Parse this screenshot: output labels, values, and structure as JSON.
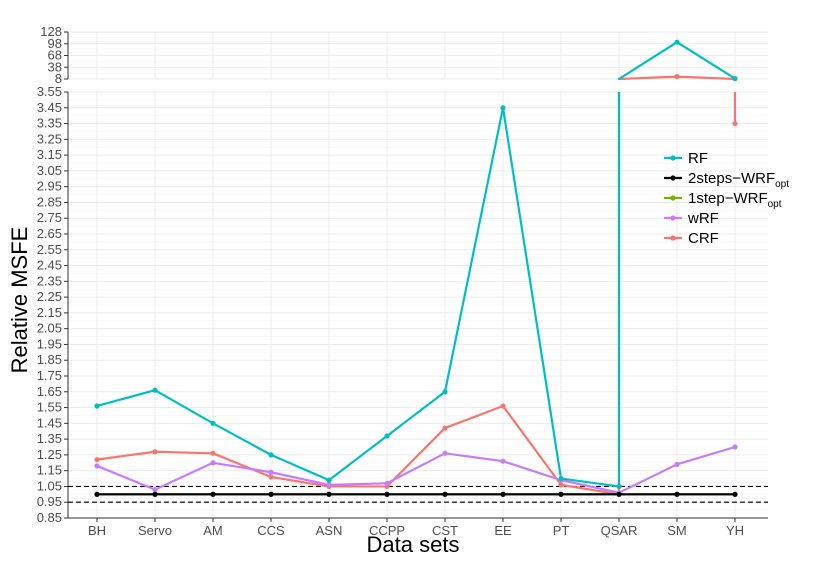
{
  "chart_data": {
    "type": "line",
    "xlabel": "Data sets",
    "ylabel": "Relative MSFE",
    "categories": [
      "BH",
      "Servo",
      "AM",
      "CCS",
      "ASN",
      "CCPP",
      "CST",
      "EE",
      "PT",
      "QSAR",
      "SM",
      "YH"
    ],
    "upper_panel": {
      "ylim": [
        8,
        128
      ],
      "ticks": [
        "128",
        "98",
        "68",
        "38",
        "8"
      ],
      "tick_values": [
        128,
        98,
        68,
        38,
        8
      ]
    },
    "lower_panel": {
      "ylim": [
        0.85,
        3.55
      ],
      "ticks": [
        "0.85",
        "0.95",
        "1.05",
        "1.15",
        "1.25",
        "1.35",
        "1.45",
        "1.55",
        "1.65",
        "1.75",
        "1.85",
        "1.95",
        "2.05",
        "2.15",
        "2.25",
        "2.35",
        "2.45",
        "2.55",
        "2.65",
        "2.75",
        "2.85",
        "2.95",
        "3.05",
        "3.15",
        "3.25",
        "3.35",
        "3.45",
        "3.55"
      ]
    },
    "reference_lines": [
      0.95,
      1.05
    ],
    "grid": true,
    "legend_position": "right",
    "series": [
      {
        "name": "RF",
        "color": "#00BFC4",
        "values": [
          1.56,
          1.66,
          1.45,
          1.25,
          1.09,
          1.37,
          1.65,
          3.45,
          1.1,
          1.05,
          102,
          9
        ]
      },
      {
        "name": "2steps−WRF",
        "sub": "opt",
        "color": "#000000",
        "values": [
          1.0,
          1.0,
          1.0,
          1.0,
          1.0,
          1.0,
          1.0,
          1.0,
          1.0,
          1.0,
          1.0,
          1.0
        ]
      },
      {
        "name": "1step−WRF",
        "sub": "opt",
        "color": "#7CAE00",
        "values": [
          1.0,
          1.0,
          1.0,
          1.0,
          1.0,
          1.0,
          1.0,
          1.0,
          1.0,
          1.0,
          1.0,
          1.0
        ]
      },
      {
        "name": "wRF",
        "color": "#C77CFF",
        "values": [
          1.18,
          1.03,
          1.2,
          1.14,
          1.06,
          1.07,
          1.26,
          1.21,
          1.09,
          1.01,
          1.19,
          1.3
        ]
      },
      {
        "name": "CRF",
        "color": "#F8766D",
        "values": [
          1.22,
          1.27,
          1.26,
          1.11,
          1.05,
          1.05,
          1.42,
          1.56,
          1.06,
          1.0,
          14,
          3.35
        ]
      }
    ]
  }
}
